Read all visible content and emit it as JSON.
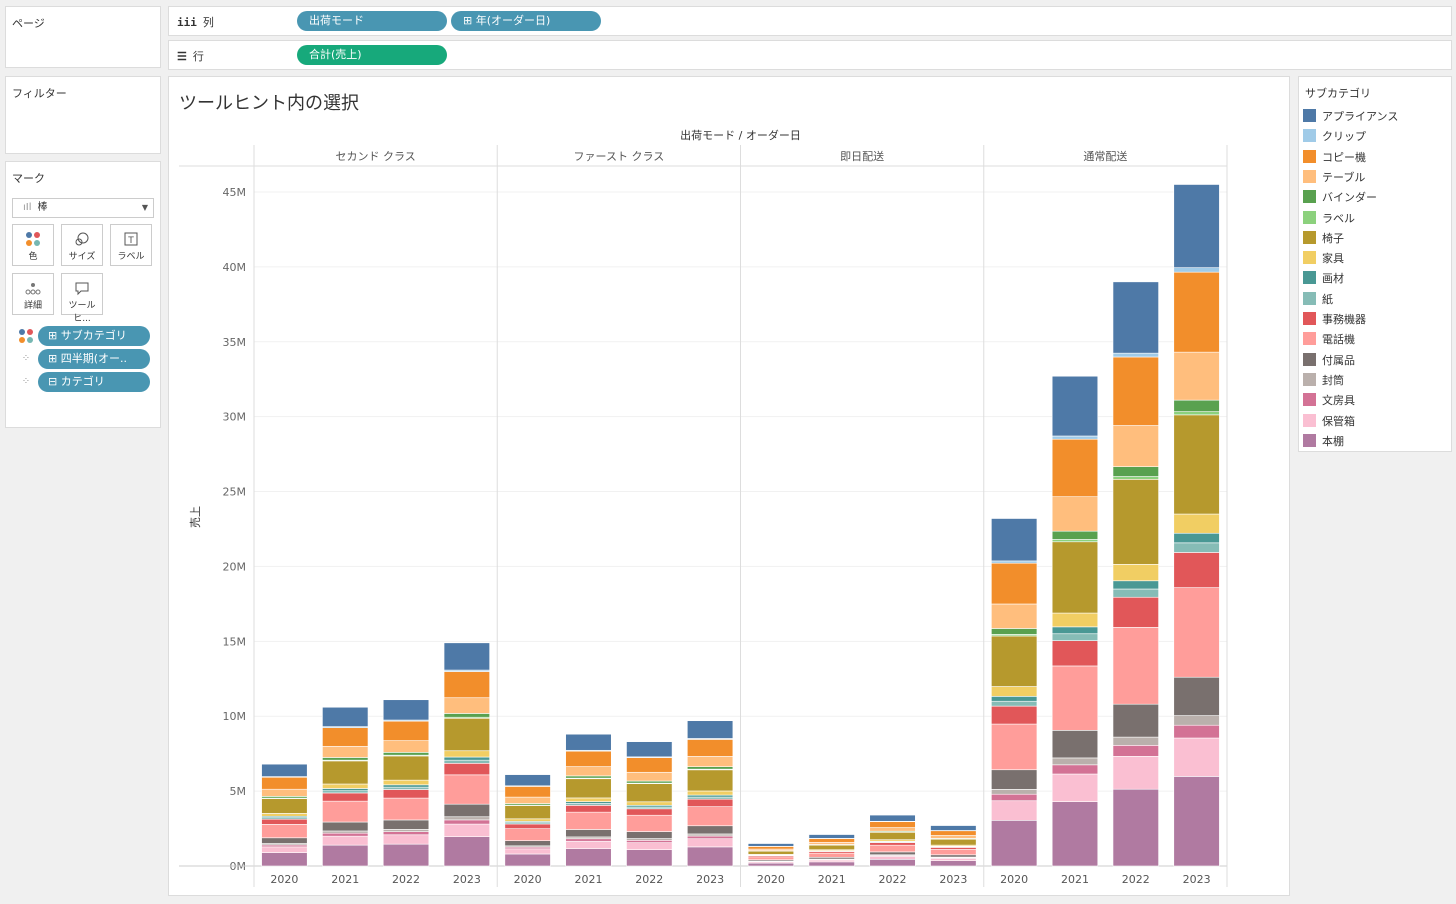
{
  "panels": {
    "pages": "ページ",
    "filters": "フィルター",
    "marks": "マーク",
    "legend": "サブカテゴリ"
  },
  "shelves": {
    "columns": {
      "label": "列",
      "icon": "columns-icon",
      "pills": [
        "出荷モード",
        "⊞ 年(オーダー日)"
      ]
    },
    "rows": {
      "label": "行",
      "icon": "rows-icon",
      "pills": [
        "合計(売上)"
      ]
    }
  },
  "marks": {
    "type": "棒",
    "buttons": [
      "色",
      "サイズ",
      "ラベル",
      "詳細",
      "ツールヒ..."
    ],
    "pills": [
      "⊞ サブカテゴリ",
      "⊞ 四半期(オー..",
      "⊟ カテゴリ"
    ]
  },
  "colors": {
    "pill_blue": "#4996b2",
    "pill_green": "#17a97b"
  },
  "chart_data": {
    "type": "bar",
    "stacked": true,
    "title": "ツールヒント内の選択",
    "header": "出荷モード / オーダー日",
    "ylabel": "売上",
    "ylim": [
      0,
      46000000
    ],
    "yticks": [
      0,
      5000000,
      10000000,
      15000000,
      20000000,
      25000000,
      30000000,
      35000000,
      40000000,
      45000000
    ],
    "ytick_labels": [
      "0M",
      "5M",
      "10M",
      "15M",
      "20M",
      "25M",
      "30M",
      "35M",
      "40M",
      "45M"
    ],
    "panes": [
      {
        "name": "セカンド クラス",
        "years": [
          "2020",
          "2021",
          "2022",
          "2023"
        ],
        "totals": [
          6.8,
          10.6,
          11.1,
          14.9
        ]
      },
      {
        "name": "ファースト クラス",
        "years": [
          "2020",
          "2021",
          "2022",
          "2023"
        ],
        "totals": [
          6.1,
          8.8,
          8.3,
          9.7
        ]
      },
      {
        "name": "即日配送",
        "years": [
          "2020",
          "2021",
          "2022",
          "2023"
        ],
        "totals": [
          1.5,
          2.1,
          3.4,
          2.7
        ]
      },
      {
        "name": "通常配送",
        "years": [
          "2020",
          "2021",
          "2022",
          "2023"
        ],
        "totals": [
          23.2,
          32.7,
          39.0,
          45.5
        ]
      }
    ],
    "total_unit": "M",
    "subcategories": [
      {
        "name": "本棚",
        "color": "#b07aa1",
        "share": 0.14
      },
      {
        "name": "保管箱",
        "color": "#fabfd2",
        "share": 0.06
      },
      {
        "name": "文房具",
        "color": "#d37295",
        "share": 0.02
      },
      {
        "name": "封筒",
        "color": "#bab0ac",
        "share": 0.015
      },
      {
        "name": "付属品",
        "color": "#79706e",
        "share": 0.06
      },
      {
        "name": "電話機",
        "color": "#ff9d9a",
        "share": 0.14
      },
      {
        "name": "事務機器",
        "color": "#e15759",
        "share": 0.055
      },
      {
        "name": "紙",
        "color": "#86bcb6",
        "share": 0.015
      },
      {
        "name": "画材",
        "color": "#499894",
        "share": 0.015
      },
      {
        "name": "家具",
        "color": "#f1ce63",
        "share": 0.03
      },
      {
        "name": "椅子",
        "color": "#b6992d",
        "share": 0.155
      },
      {
        "name": "ラベル",
        "color": "#8cd17d",
        "share": 0.005
      },
      {
        "name": "バインダー",
        "color": "#59a14f",
        "share": 0.018
      },
      {
        "name": "テーブル",
        "color": "#ffbe7d",
        "share": 0.075
      },
      {
        "name": "コピー機",
        "color": "#f28e2b",
        "share": 0.125
      },
      {
        "name": "クリップ",
        "color": "#a0cbe8",
        "share": 0.007
      },
      {
        "name": "アプライアンス",
        "color": "#4e79a7",
        "share": 0.13
      }
    ]
  },
  "legend_order": [
    "アプライアンス",
    "クリップ",
    "コピー機",
    "テーブル",
    "バインダー",
    "ラベル",
    "椅子",
    "家具",
    "画材",
    "紙",
    "事務機器",
    "電話機",
    "付属品",
    "封筒",
    "文房具",
    "保管箱",
    "本棚"
  ]
}
